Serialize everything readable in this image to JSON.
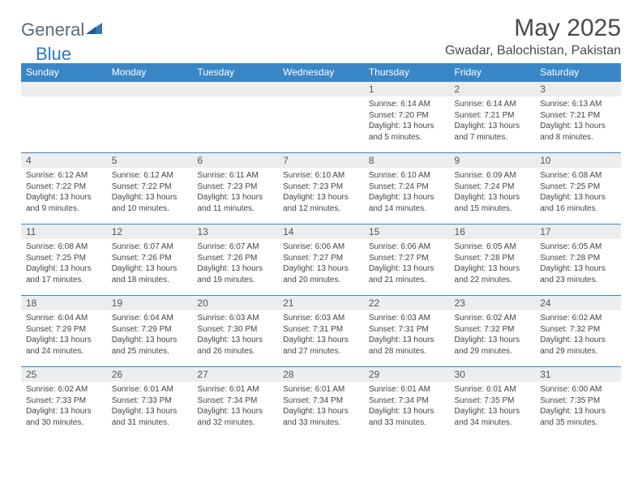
{
  "brand": {
    "part1": "General",
    "part2": "Blue"
  },
  "title": "May 2025",
  "location": "Gwadar, Balochistan, Pakistan",
  "colors": {
    "header_bg": "#3a87c8",
    "header_text": "#ffffff",
    "daynum_bg": "#ebedee",
    "border": "#3a87c8",
    "brand_gray": "#5a6b78",
    "brand_blue": "#2f79b9"
  },
  "weekdays": [
    "Sunday",
    "Monday",
    "Tuesday",
    "Wednesday",
    "Thursday",
    "Friday",
    "Saturday"
  ],
  "grid": [
    [
      {
        "day": "",
        "lines": []
      },
      {
        "day": "",
        "lines": []
      },
      {
        "day": "",
        "lines": []
      },
      {
        "day": "",
        "lines": []
      },
      {
        "day": "1",
        "lines": [
          "Sunrise: 6:14 AM",
          "Sunset: 7:20 PM",
          "Daylight: 13 hours and 5 minutes."
        ]
      },
      {
        "day": "2",
        "lines": [
          "Sunrise: 6:14 AM",
          "Sunset: 7:21 PM",
          "Daylight: 13 hours and 7 minutes."
        ]
      },
      {
        "day": "3",
        "lines": [
          "Sunrise: 6:13 AM",
          "Sunset: 7:21 PM",
          "Daylight: 13 hours and 8 minutes."
        ]
      }
    ],
    [
      {
        "day": "4",
        "lines": [
          "Sunrise: 6:12 AM",
          "Sunset: 7:22 PM",
          "Daylight: 13 hours and 9 minutes."
        ]
      },
      {
        "day": "5",
        "lines": [
          "Sunrise: 6:12 AM",
          "Sunset: 7:22 PM",
          "Daylight: 13 hours and 10 minutes."
        ]
      },
      {
        "day": "6",
        "lines": [
          "Sunrise: 6:11 AM",
          "Sunset: 7:23 PM",
          "Daylight: 13 hours and 11 minutes."
        ]
      },
      {
        "day": "7",
        "lines": [
          "Sunrise: 6:10 AM",
          "Sunset: 7:23 PM",
          "Daylight: 13 hours and 12 minutes."
        ]
      },
      {
        "day": "8",
        "lines": [
          "Sunrise: 6:10 AM",
          "Sunset: 7:24 PM",
          "Daylight: 13 hours and 14 minutes."
        ]
      },
      {
        "day": "9",
        "lines": [
          "Sunrise: 6:09 AM",
          "Sunset: 7:24 PM",
          "Daylight: 13 hours and 15 minutes."
        ]
      },
      {
        "day": "10",
        "lines": [
          "Sunrise: 6:08 AM",
          "Sunset: 7:25 PM",
          "Daylight: 13 hours and 16 minutes."
        ]
      }
    ],
    [
      {
        "day": "11",
        "lines": [
          "Sunrise: 6:08 AM",
          "Sunset: 7:25 PM",
          "Daylight: 13 hours and 17 minutes."
        ]
      },
      {
        "day": "12",
        "lines": [
          "Sunrise: 6:07 AM",
          "Sunset: 7:26 PM",
          "Daylight: 13 hours and 18 minutes."
        ]
      },
      {
        "day": "13",
        "lines": [
          "Sunrise: 6:07 AM",
          "Sunset: 7:26 PM",
          "Daylight: 13 hours and 19 minutes."
        ]
      },
      {
        "day": "14",
        "lines": [
          "Sunrise: 6:06 AM",
          "Sunset: 7:27 PM",
          "Daylight: 13 hours and 20 minutes."
        ]
      },
      {
        "day": "15",
        "lines": [
          "Sunrise: 6:06 AM",
          "Sunset: 7:27 PM",
          "Daylight: 13 hours and 21 minutes."
        ]
      },
      {
        "day": "16",
        "lines": [
          "Sunrise: 6:05 AM",
          "Sunset: 7:28 PM",
          "Daylight: 13 hours and 22 minutes."
        ]
      },
      {
        "day": "17",
        "lines": [
          "Sunrise: 6:05 AM",
          "Sunset: 7:28 PM",
          "Daylight: 13 hours and 23 minutes."
        ]
      }
    ],
    [
      {
        "day": "18",
        "lines": [
          "Sunrise: 6:04 AM",
          "Sunset: 7:29 PM",
          "Daylight: 13 hours and 24 minutes."
        ]
      },
      {
        "day": "19",
        "lines": [
          "Sunrise: 6:04 AM",
          "Sunset: 7:29 PM",
          "Daylight: 13 hours and 25 minutes."
        ]
      },
      {
        "day": "20",
        "lines": [
          "Sunrise: 6:03 AM",
          "Sunset: 7:30 PM",
          "Daylight: 13 hours and 26 minutes."
        ]
      },
      {
        "day": "21",
        "lines": [
          "Sunrise: 6:03 AM",
          "Sunset: 7:31 PM",
          "Daylight: 13 hours and 27 minutes."
        ]
      },
      {
        "day": "22",
        "lines": [
          "Sunrise: 6:03 AM",
          "Sunset: 7:31 PM",
          "Daylight: 13 hours and 28 minutes."
        ]
      },
      {
        "day": "23",
        "lines": [
          "Sunrise: 6:02 AM",
          "Sunset: 7:32 PM",
          "Daylight: 13 hours and 29 minutes."
        ]
      },
      {
        "day": "24",
        "lines": [
          "Sunrise: 6:02 AM",
          "Sunset: 7:32 PM",
          "Daylight: 13 hours and 29 minutes."
        ]
      }
    ],
    [
      {
        "day": "25",
        "lines": [
          "Sunrise: 6:02 AM",
          "Sunset: 7:33 PM",
          "Daylight: 13 hours and 30 minutes."
        ]
      },
      {
        "day": "26",
        "lines": [
          "Sunrise: 6:01 AM",
          "Sunset: 7:33 PM",
          "Daylight: 13 hours and 31 minutes."
        ]
      },
      {
        "day": "27",
        "lines": [
          "Sunrise: 6:01 AM",
          "Sunset: 7:34 PM",
          "Daylight: 13 hours and 32 minutes."
        ]
      },
      {
        "day": "28",
        "lines": [
          "Sunrise: 6:01 AM",
          "Sunset: 7:34 PM",
          "Daylight: 13 hours and 33 minutes."
        ]
      },
      {
        "day": "29",
        "lines": [
          "Sunrise: 6:01 AM",
          "Sunset: 7:34 PM",
          "Daylight: 13 hours and 33 minutes."
        ]
      },
      {
        "day": "30",
        "lines": [
          "Sunrise: 6:01 AM",
          "Sunset: 7:35 PM",
          "Daylight: 13 hours and 34 minutes."
        ]
      },
      {
        "day": "31",
        "lines": [
          "Sunrise: 6:00 AM",
          "Sunset: 7:35 PM",
          "Daylight: 13 hours and 35 minutes."
        ]
      }
    ]
  ]
}
